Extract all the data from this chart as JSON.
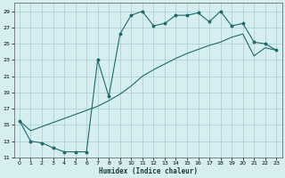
{
  "xlabel": "Humidex (Indice chaleur)",
  "background_color": "#d6eef0",
  "grid_color": "#aaccd4",
  "line_color": "#1a6b6b",
  "xlim": [
    -0.5,
    23.5
  ],
  "ylim": [
    11,
    30
  ],
  "yticks": [
    11,
    13,
    15,
    17,
    19,
    21,
    23,
    25,
    27,
    29
  ],
  "xticks": [
    0,
    1,
    2,
    3,
    4,
    5,
    6,
    7,
    8,
    9,
    10,
    11,
    12,
    13,
    14,
    15,
    16,
    17,
    18,
    19,
    20,
    21,
    22,
    23
  ],
  "curve1_x": [
    0,
    1,
    2,
    3,
    4,
    5,
    6,
    7,
    8,
    9,
    10,
    11,
    12,
    13,
    14,
    15,
    16,
    17,
    18,
    19,
    20,
    21,
    22,
    23
  ],
  "curve1_y": [
    15.5,
    13.0,
    12.8,
    12.2,
    11.7,
    11.7,
    11.7,
    23.0,
    18.5,
    26.2,
    28.5,
    29.0,
    27.2,
    27.5,
    28.5,
    28.5,
    28.8,
    27.7,
    29.0,
    27.2,
    27.5,
    25.2,
    25.0,
    24.2
  ],
  "curve2_x": [
    0,
    1,
    2,
    3,
    4,
    5,
    6,
    7,
    8,
    9,
    10,
    11,
    12,
    13,
    14,
    15,
    16,
    17,
    18,
    19,
    20,
    21,
    22,
    23
  ],
  "curve2_y": [
    15.5,
    14.3,
    14.8,
    15.3,
    15.8,
    16.3,
    16.8,
    17.3,
    18.0,
    18.8,
    19.8,
    21.0,
    21.8,
    22.5,
    23.2,
    23.8,
    24.3,
    24.8,
    25.2,
    25.8,
    26.2,
    23.5,
    24.5,
    24.2
  ]
}
